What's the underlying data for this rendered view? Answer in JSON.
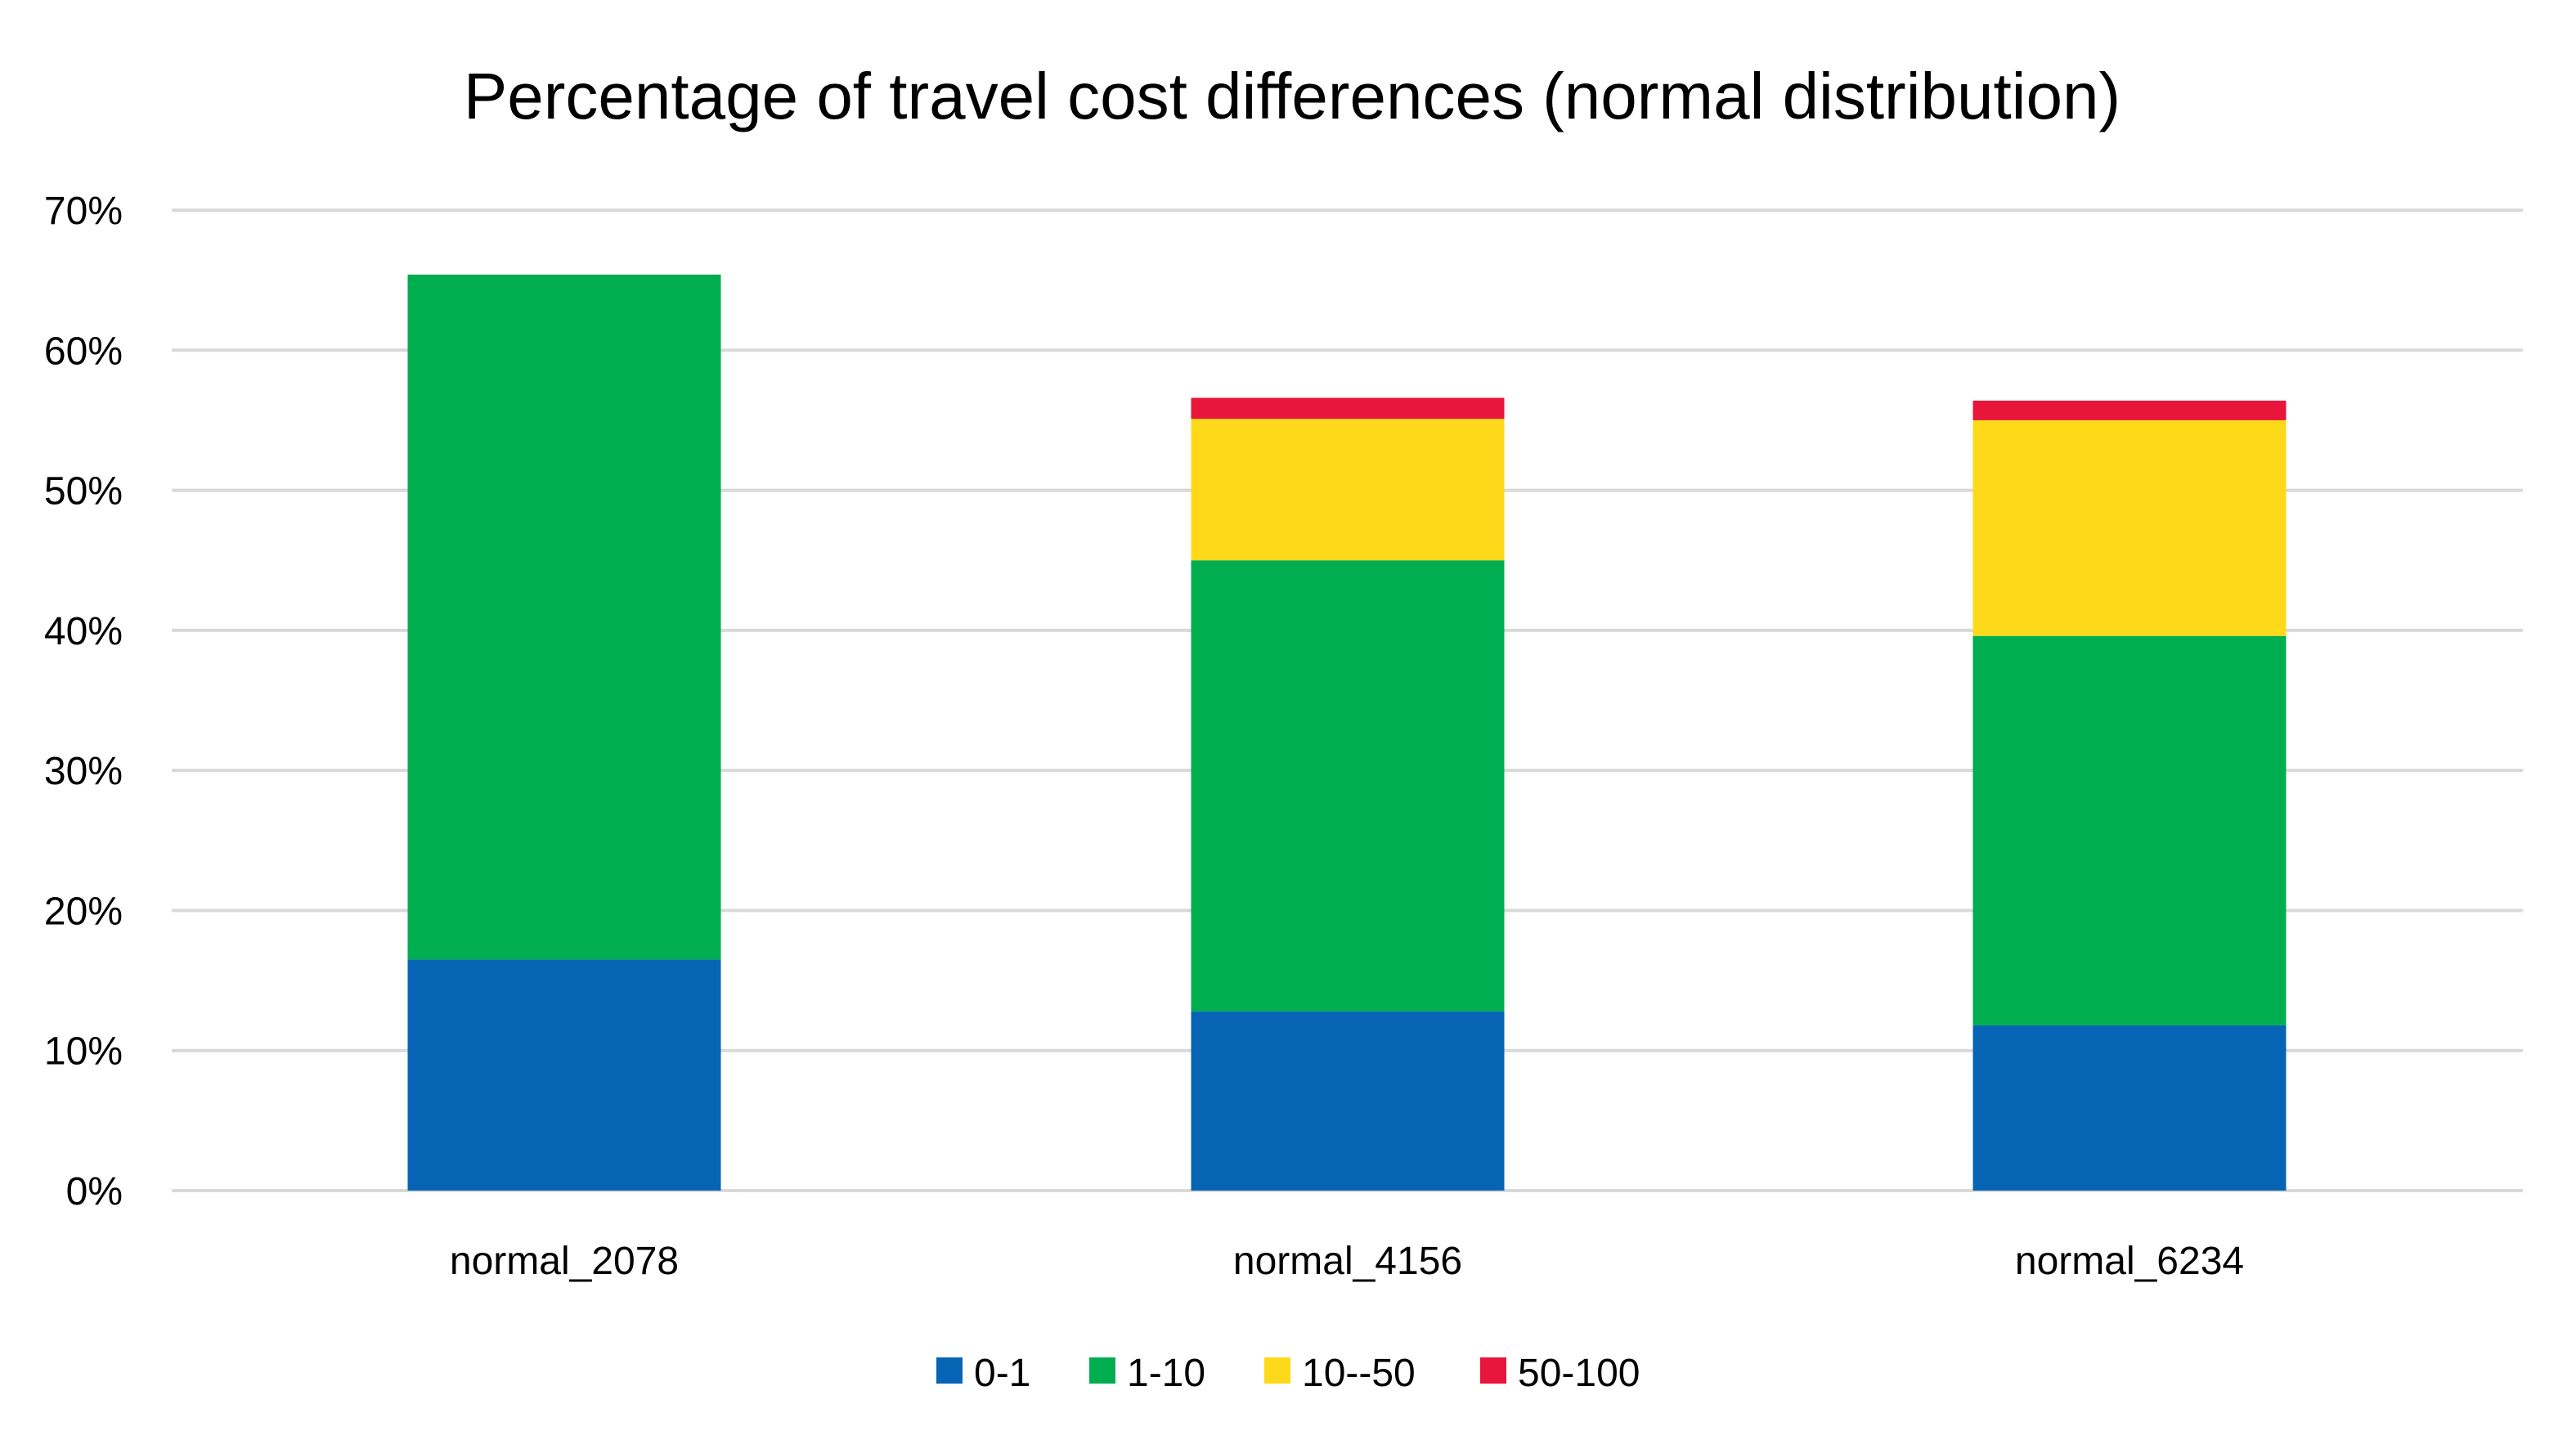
{
  "chart_data": {
    "type": "bar",
    "stacked": true,
    "title": "Percentage of travel cost differences (normal distribution)",
    "xlabel": "",
    "ylabel": "",
    "ylim": [
      0,
      70
    ],
    "y_ticks": [
      "0%",
      "10%",
      "20%",
      "30%",
      "40%",
      "50%",
      "60%",
      "70%"
    ],
    "grid": true,
    "legend_position": "bottom",
    "categories": [
      "normal_2078",
      "normal_4156",
      "normal_6234"
    ],
    "series": [
      {
        "name": "0-1",
        "color": "#0764b4",
        "values": [
          16.5,
          12.8,
          11.8
        ]
      },
      {
        "name": "1-10",
        "color": "#00ad4f",
        "values": [
          48.9,
          32.2,
          27.8
        ]
      },
      {
        "name": "10--50",
        "color": "#fdd91a",
        "values": [
          0,
          10.1,
          15.4
        ]
      },
      {
        "name": "50-100",
        "color": "#e8163b",
        "values": [
          0,
          1.5,
          1.4
        ]
      }
    ]
  }
}
